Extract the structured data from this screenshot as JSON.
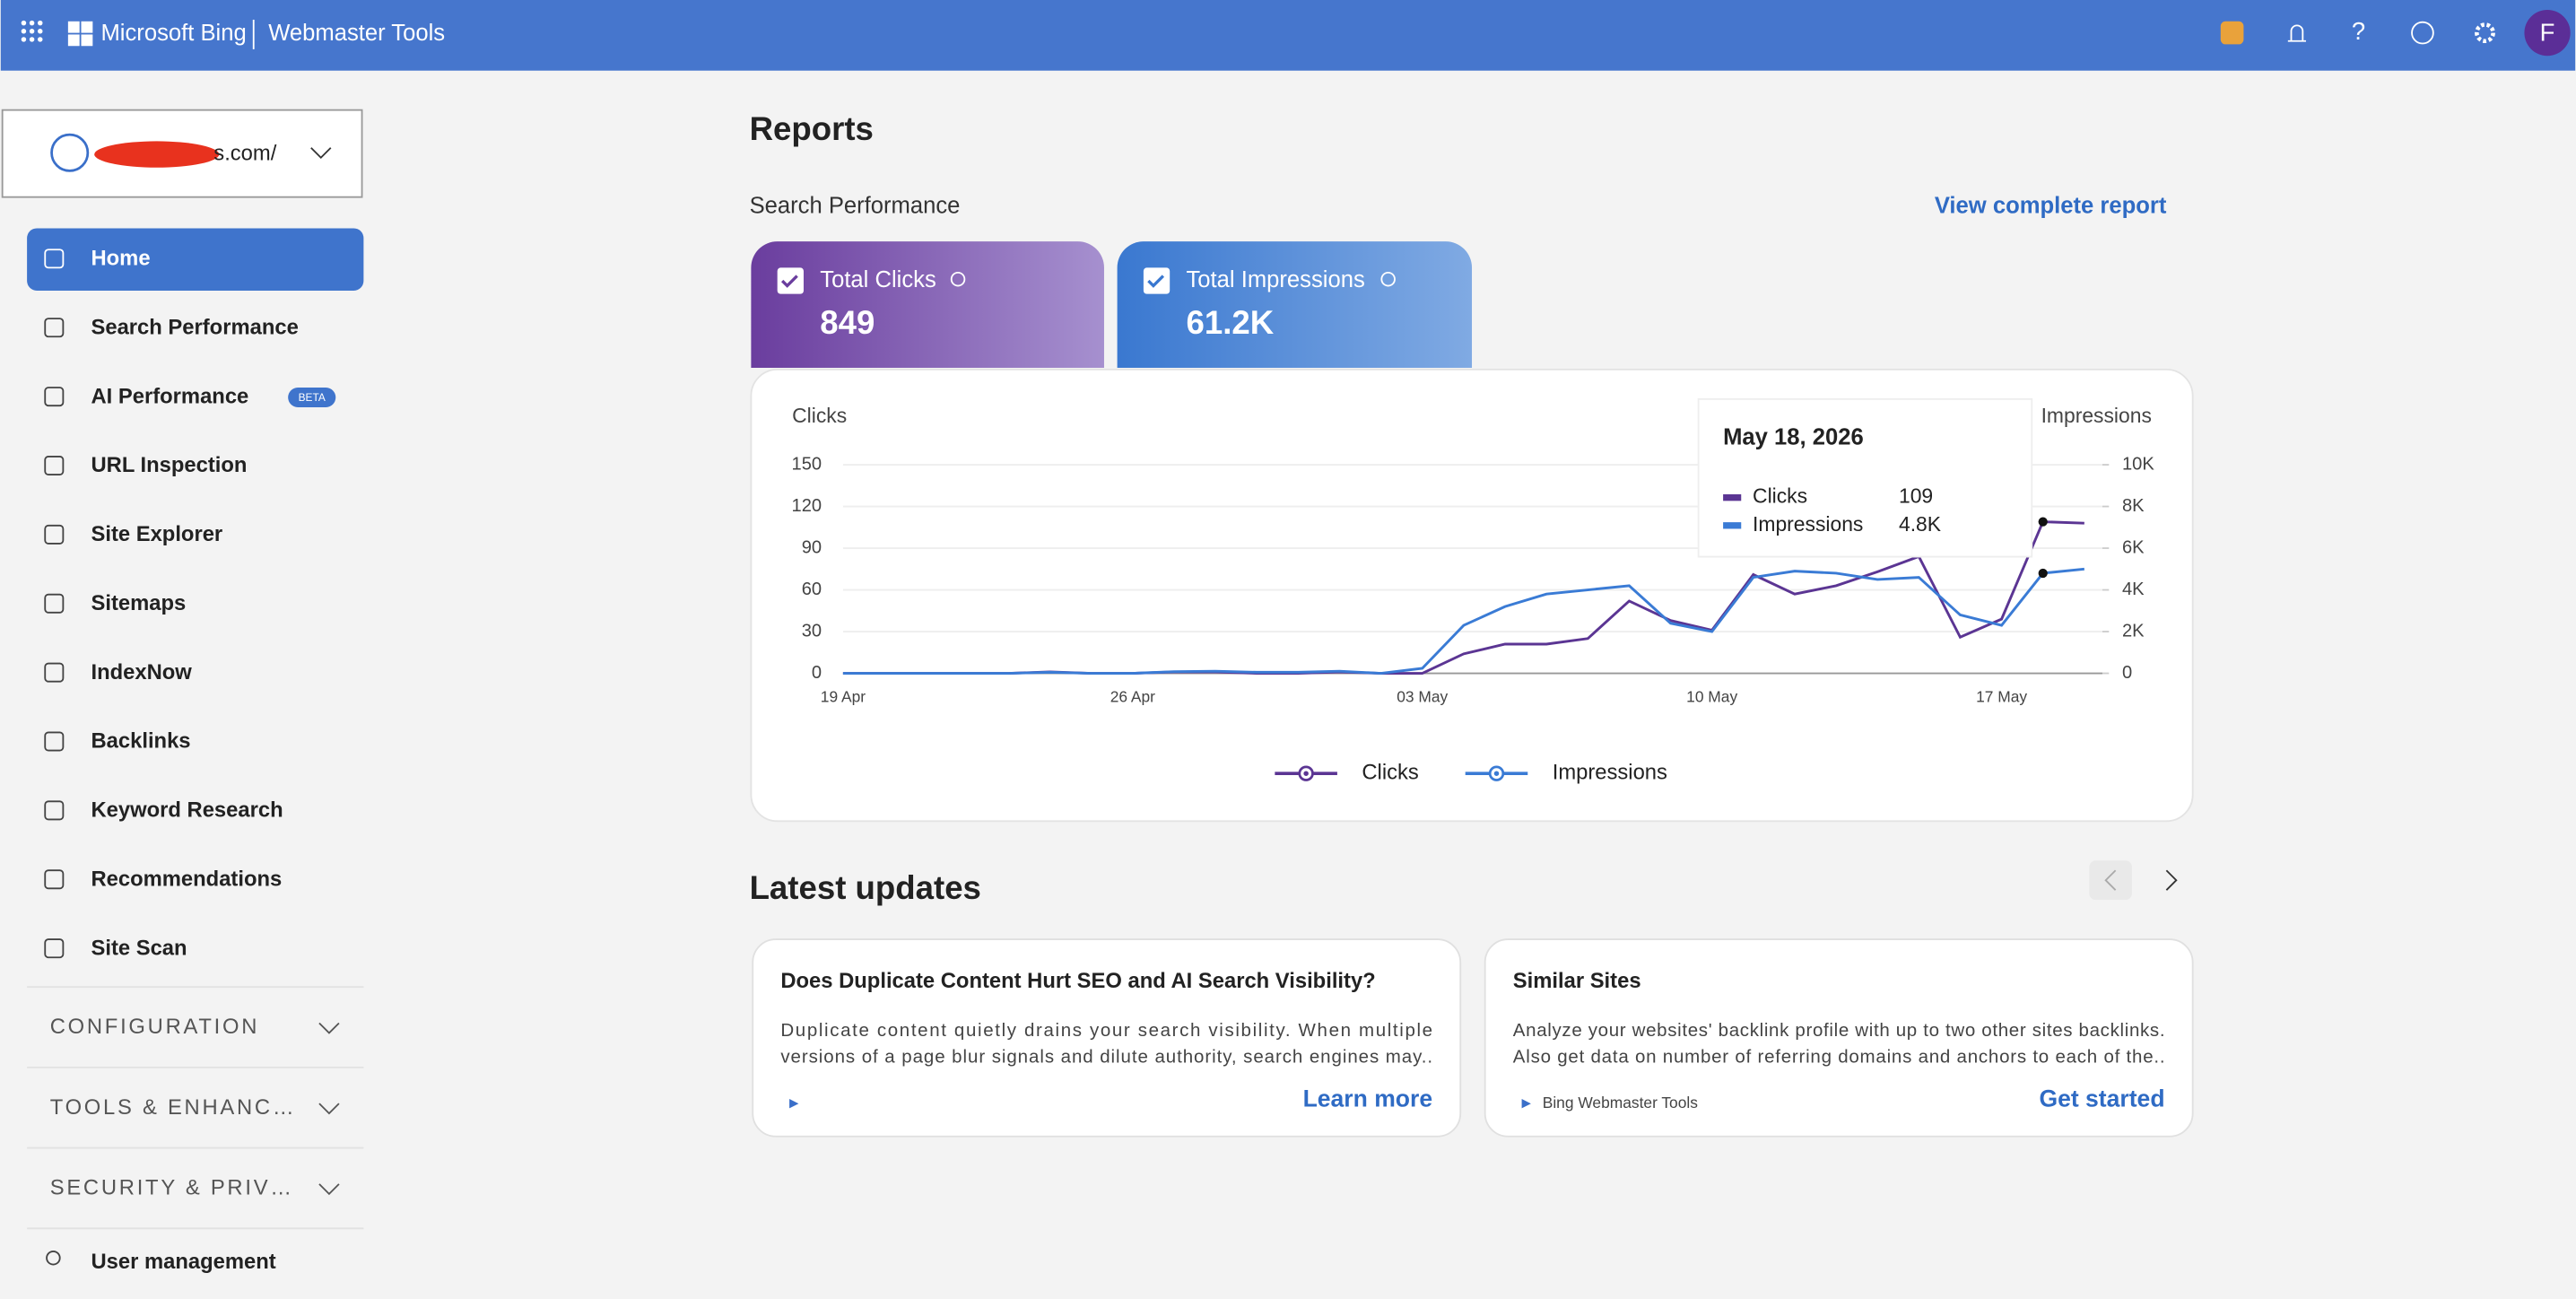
{
  "header": {
    "brand": "Microsoft Bing",
    "product": "Webmaster Tools",
    "avatar": "F"
  },
  "sidebar": {
    "site": "s.com/",
    "items": [
      "Home",
      "Search Performance",
      "AI Performance",
      "URL Inspection",
      "Site Explorer",
      "Sitemaps",
      "IndexNow",
      "Backlinks",
      "Keyword Research",
      "Recommendations",
      "Site Scan"
    ],
    "badge": "BETA",
    "sections": [
      "CONFIGURATION",
      "TOOLS & ENHANC…",
      "SECURITY & PRIV…"
    ],
    "footer_item": "User management"
  },
  "reports": {
    "title": "Reports",
    "subtitle": "Search Performance",
    "link": "View complete report",
    "cards": [
      {
        "label": "Total Clicks",
        "value": 849
      },
      {
        "label": "Total Impressions",
        "value": "61.2K"
      }
    ]
  },
  "chart_data": {
    "type": "line",
    "ylabel": "Clicks",
    "y2label": "Impressions",
    "categories": [
      "19 Apr",
      null,
      null,
      null,
      null,
      null,
      null,
      "26 Apr",
      null,
      null,
      null,
      null,
      null,
      null,
      "03 May",
      null,
      null,
      null,
      null,
      null,
      null,
      "10 May",
      null,
      null,
      null,
      null,
      null,
      null,
      "17 May",
      null,
      null
    ],
    "series": [
      {
        "name": "Clicks",
        "color": "#5b3593",
        "values": [
          0,
          0,
          0,
          0,
          0,
          1,
          0,
          0,
          1,
          1,
          0,
          0,
          1,
          0,
          0,
          14,
          21,
          21,
          25,
          52,
          38,
          31,
          71,
          57,
          63,
          73,
          84,
          26,
          39,
          109,
          108
        ]
      },
      {
        "name": "Impressions",
        "color": "#3a7bd5",
        "axis": "y2",
        "values": [
          0,
          0,
          0,
          0,
          0,
          50,
          0,
          0,
          80,
          100,
          50,
          50,
          100,
          0,
          240,
          2300,
          3200,
          3800,
          4000,
          4200,
          2400,
          2000,
          4600,
          4900,
          4800,
          4500,
          4600,
          2800,
          2300,
          4800,
          5000
        ]
      }
    ],
    "ylim": [
      0,
      150
    ],
    "yticks": [
      0,
      30,
      60,
      90,
      120,
      150
    ],
    "y2lim": [
      0,
      10000
    ],
    "y2ticks": [
      0,
      {
        "value": 2000,
        "label": "2K"
      },
      {
        "value": 4000,
        "label": "4K"
      },
      {
        "value": 6000,
        "label": "6K"
      },
      {
        "value": 8000,
        "label": "8K"
      },
      {
        "value": 10000,
        "label": "10K"
      }
    ],
    "grid": true,
    "tooltip": {
      "title": "May 18, 2026",
      "clicks": 109,
      "impressions": "4.8K"
    }
  },
  "updates": {
    "title": "Latest updates",
    "cards": [
      {
        "title": "Does Duplicate Content Hurt SEO and AI Search Visibility?",
        "lines": [
          "Duplicate content quietly drains your search visibility. When multiple",
          "versions of a page blur signals and dilute authority, search engines may.."
        ],
        "source": "",
        "action": "Learn more"
      },
      {
        "title": "Similar Sites",
        "lines": [
          "Analyze your websites' backlink profile with up to two other sites backlinks.",
          "Also get data on number of referring domains and anchors to each of the.."
        ],
        "source": "Bing Webmaster Tools",
        "action": "Get started"
      }
    ]
  }
}
